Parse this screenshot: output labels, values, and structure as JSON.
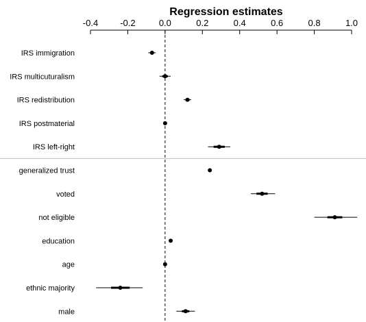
{
  "chart_data": {
    "type": "coefficient-plot",
    "title": "Regression estimates",
    "x_axis": {
      "position": "top",
      "range": [
        -0.4,
        1.0
      ],
      "ticks": [
        -0.4,
        -0.2,
        0.0,
        0.2,
        0.4,
        0.6,
        0.8,
        1.0
      ],
      "tick_labels": [
        "-0.4",
        "-0.2",
        "0.0",
        "0.2",
        "0.4",
        "0.6",
        "0.8",
        "1.0"
      ]
    },
    "reference_line": 0,
    "grid": false,
    "group_separator_after": "IRS left-right",
    "rows": [
      {
        "label": "IRS immigration",
        "estimate": -0.07,
        "ci_inner": [
          -0.08,
          -0.06
        ],
        "ci_outer": [
          -0.09,
          -0.05
        ]
      },
      {
        "label": "IRS multicuturalism",
        "estimate": 0.0,
        "ci_inner": [
          -0.015,
          0.015
        ],
        "ci_outer": [
          -0.03,
          0.03
        ]
      },
      {
        "label": "IRS redistribution",
        "estimate": 0.12,
        "ci_inner": [
          0.11,
          0.13
        ],
        "ci_outer": [
          0.1,
          0.14
        ]
      },
      {
        "label": "IRS postmaterial",
        "estimate": 0.0,
        "ci_inner": [
          -0.005,
          0.005
        ],
        "ci_outer": [
          -0.01,
          0.01
        ]
      },
      {
        "label": "IRS left-right",
        "estimate": 0.29,
        "ci_inner": [
          0.26,
          0.32
        ],
        "ci_outer": [
          0.23,
          0.35
        ]
      },
      {
        "label": "generalized trust",
        "estimate": 0.24,
        "ci_inner": [
          0.235,
          0.245
        ],
        "ci_outer": [
          0.23,
          0.25
        ]
      },
      {
        "label": "voted",
        "estimate": 0.52,
        "ci_inner": [
          0.49,
          0.55
        ],
        "ci_outer": [
          0.46,
          0.59
        ]
      },
      {
        "label": "not eligible",
        "estimate": 0.91,
        "ci_inner": [
          0.87,
          0.95
        ],
        "ci_outer": [
          0.8,
          1.03
        ]
      },
      {
        "label": "education",
        "estimate": 0.03,
        "ci_inner": [
          0.025,
          0.035
        ],
        "ci_outer": [
          0.02,
          0.04
        ]
      },
      {
        "label": "age",
        "estimate": 0.0,
        "ci_inner": [
          -0.003,
          0.003
        ],
        "ci_outer": [
          -0.006,
          0.006
        ]
      },
      {
        "label": "ethnic majority",
        "estimate": -0.24,
        "ci_inner": [
          -0.29,
          -0.19
        ],
        "ci_outer": [
          -0.37,
          -0.12
        ]
      },
      {
        "label": "male",
        "estimate": 0.11,
        "ci_inner": [
          0.09,
          0.13
        ],
        "ci_outer": [
          0.06,
          0.16
        ]
      }
    ]
  }
}
